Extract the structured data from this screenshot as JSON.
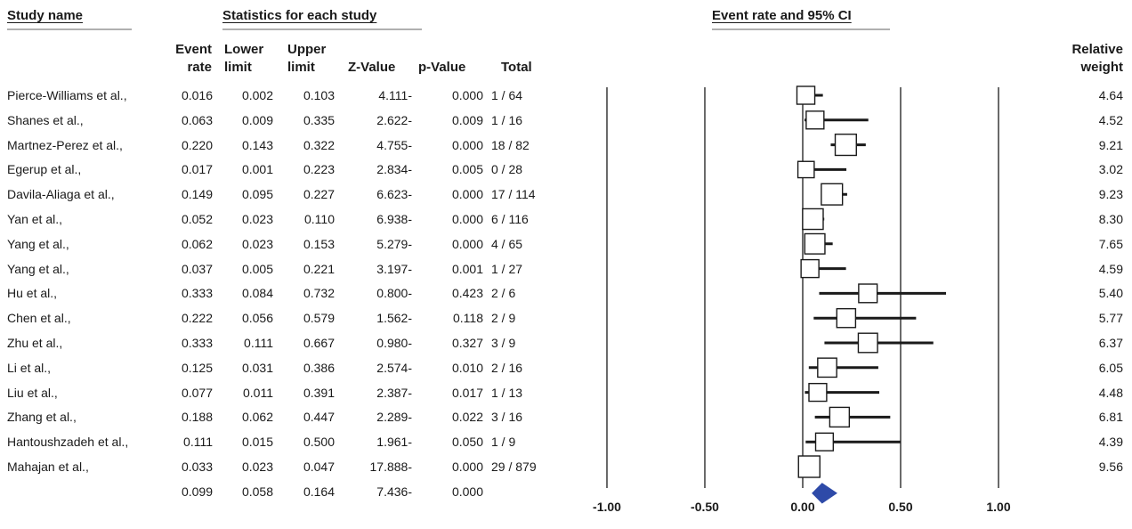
{
  "headers": {
    "study_name": "Study name",
    "statistics": "Statistics for each study",
    "plot_title": "Event rate and 95% CI"
  },
  "columns": {
    "event_rate": [
      "Event",
      "rate"
    ],
    "lower_limit": [
      "Lower",
      "limit"
    ],
    "upper_limit": [
      "Upper",
      "limit"
    ],
    "z_value": "Z-Value",
    "p_value": "p-Value",
    "total": "Total",
    "relative_weight": [
      "Relative",
      "weight"
    ]
  },
  "rows": [
    {
      "study": "Pierce-Williams et al.,",
      "event_rate": "0.016",
      "lower": "0.002",
      "upper": "0.103",
      "z": "4.111-",
      "p": "0.000",
      "total": "1 / 64",
      "weight": "4.64"
    },
    {
      "study": "Shanes et al.,",
      "event_rate": "0.063",
      "lower": "0.009",
      "upper": "0.335",
      "z": "2.622-",
      "p": "0.009",
      "total": "1 / 16",
      "weight": "4.52"
    },
    {
      "study": "Martnez-Perez et al.,",
      "event_rate": "0.220",
      "lower": "0.143",
      "upper": "0.322",
      "z": "4.755-",
      "p": "0.000",
      "total": "18 / 82",
      "weight": "9.21"
    },
    {
      "study": "Egerup et al.,",
      "event_rate": "0.017",
      "lower": "0.001",
      "upper": "0.223",
      "z": "2.834-",
      "p": "0.005",
      "total": "0 / 28",
      "weight": "3.02"
    },
    {
      "study": "Davila-Aliaga et al.,",
      "event_rate": "0.149",
      "lower": "0.095",
      "upper": "0.227",
      "z": "6.623-",
      "p": "0.000",
      "total": "17 / 114",
      "weight": "9.23"
    },
    {
      "study": "Yan et al.,",
      "event_rate": "0.052",
      "lower": "0.023",
      "upper": "0.110",
      "z": "6.938-",
      "p": "0.000",
      "total": "6 / 116",
      "weight": "8.30"
    },
    {
      "study": "Yang et al.,",
      "event_rate": "0.062",
      "lower": "0.023",
      "upper": "0.153",
      "z": "5.279-",
      "p": "0.000",
      "total": "4 / 65",
      "weight": "7.65"
    },
    {
      "study": "Yang et al.,",
      "event_rate": "0.037",
      "lower": "0.005",
      "upper": "0.221",
      "z": "3.197-",
      "p": "0.001",
      "total": "1 / 27",
      "weight": "4.59"
    },
    {
      "study": "Hu et al.,",
      "event_rate": "0.333",
      "lower": "0.084",
      "upper": "0.732",
      "z": "0.800-",
      "p": "0.423",
      "total": "2 / 6",
      "weight": "5.40"
    },
    {
      "study": "Chen et al.,",
      "event_rate": "0.222",
      "lower": "0.056",
      "upper": "0.579",
      "z": "1.562-",
      "p": "0.118",
      "total": "2 / 9",
      "weight": "5.77"
    },
    {
      "study": "Zhu et al.,",
      "event_rate": "0.333",
      "lower": "0.111",
      "upper": "0.667",
      "z": "0.980-",
      "p": "0.327",
      "total": "3 / 9",
      "weight": "6.37"
    },
    {
      "study": "Li et al.,",
      "event_rate": "0.125",
      "lower": "0.031",
      "upper": "0.386",
      "z": "2.574-",
      "p": "0.010",
      "total": "2 / 16",
      "weight": "6.05"
    },
    {
      "study": "Liu et al.,",
      "event_rate": "0.077",
      "lower": "0.011",
      "upper": "0.391",
      "z": "2.387-",
      "p": "0.017",
      "total": "1 / 13",
      "weight": "4.48"
    },
    {
      "study": "Zhang et al.,",
      "event_rate": "0.188",
      "lower": "0.062",
      "upper": "0.447",
      "z": "2.289-",
      "p": "0.022",
      "total": "3 / 16",
      "weight": "6.81"
    },
    {
      "study": "Hantoushzadeh et al.,",
      "event_rate": "0.111",
      "lower": "0.015",
      "upper": "0.500",
      "z": "1.961-",
      "p": "0.050",
      "total": "1 / 9",
      "weight": "4.39"
    },
    {
      "study": "Mahajan et al.,",
      "event_rate": "0.033",
      "lower": "0.023",
      "upper": "0.047",
      "z": "17.888-",
      "p": "0.000",
      "total": "29 / 879",
      "weight": "9.56"
    }
  ],
  "summary": {
    "event_rate": "0.099",
    "lower": "0.058",
    "upper": "0.164",
    "z": "7.436-",
    "p": "0.000"
  },
  "axis_ticks": [
    "-1.00",
    "-0.50",
    "0.00",
    "0.50",
    "1.00"
  ],
  "colors": {
    "diamond": "#2e4aa8",
    "lines": "#1a1a1a",
    "header_underline": "#b0b0b0"
  },
  "chart_data": {
    "type": "forest",
    "xlim": [
      -1.0,
      1.0
    ],
    "x_ticks": [
      -1.0,
      -0.5,
      0.0,
      0.5,
      1.0
    ],
    "studies": [
      {
        "name": "Pierce-Williams et al.,",
        "estimate": 0.016,
        "lower": 0.002,
        "upper": 0.103,
        "weight": 4.64
      },
      {
        "name": "Shanes et al.,",
        "estimate": 0.063,
        "lower": 0.009,
        "upper": 0.335,
        "weight": 4.52
      },
      {
        "name": "Martnez-Perez et al.,",
        "estimate": 0.22,
        "lower": 0.143,
        "upper": 0.322,
        "weight": 9.21
      },
      {
        "name": "Egerup et al.,",
        "estimate": 0.017,
        "lower": 0.001,
        "upper": 0.223,
        "weight": 3.02
      },
      {
        "name": "Davila-Aliaga et al.,",
        "estimate": 0.149,
        "lower": 0.095,
        "upper": 0.227,
        "weight": 9.23
      },
      {
        "name": "Yan et al.,",
        "estimate": 0.052,
        "lower": 0.023,
        "upper": 0.11,
        "weight": 8.3
      },
      {
        "name": "Yang et al.,",
        "estimate": 0.062,
        "lower": 0.023,
        "upper": 0.153,
        "weight": 7.65
      },
      {
        "name": "Yang et al.,",
        "estimate": 0.037,
        "lower": 0.005,
        "upper": 0.221,
        "weight": 4.59
      },
      {
        "name": "Hu et al.,",
        "estimate": 0.333,
        "lower": 0.084,
        "upper": 0.732,
        "weight": 5.4
      },
      {
        "name": "Chen et al.,",
        "estimate": 0.222,
        "lower": 0.056,
        "upper": 0.579,
        "weight": 5.77
      },
      {
        "name": "Zhu et al.,",
        "estimate": 0.333,
        "lower": 0.111,
        "upper": 0.667,
        "weight": 6.37
      },
      {
        "name": "Li et al.,",
        "estimate": 0.125,
        "lower": 0.031,
        "upper": 0.386,
        "weight": 6.05
      },
      {
        "name": "Liu et al.,",
        "estimate": 0.077,
        "lower": 0.011,
        "upper": 0.391,
        "weight": 4.48
      },
      {
        "name": "Zhang et al.,",
        "estimate": 0.188,
        "lower": 0.062,
        "upper": 0.447,
        "weight": 6.81
      },
      {
        "name": "Hantoushzadeh et al.,",
        "estimate": 0.111,
        "lower": 0.015,
        "upper": 0.5,
        "weight": 4.39
      },
      {
        "name": "Mahajan et al.,",
        "estimate": 0.033,
        "lower": 0.023,
        "upper": 0.047,
        "weight": 9.56
      }
    ],
    "summary": {
      "estimate": 0.099,
      "lower": 0.058,
      "upper": 0.164
    }
  }
}
